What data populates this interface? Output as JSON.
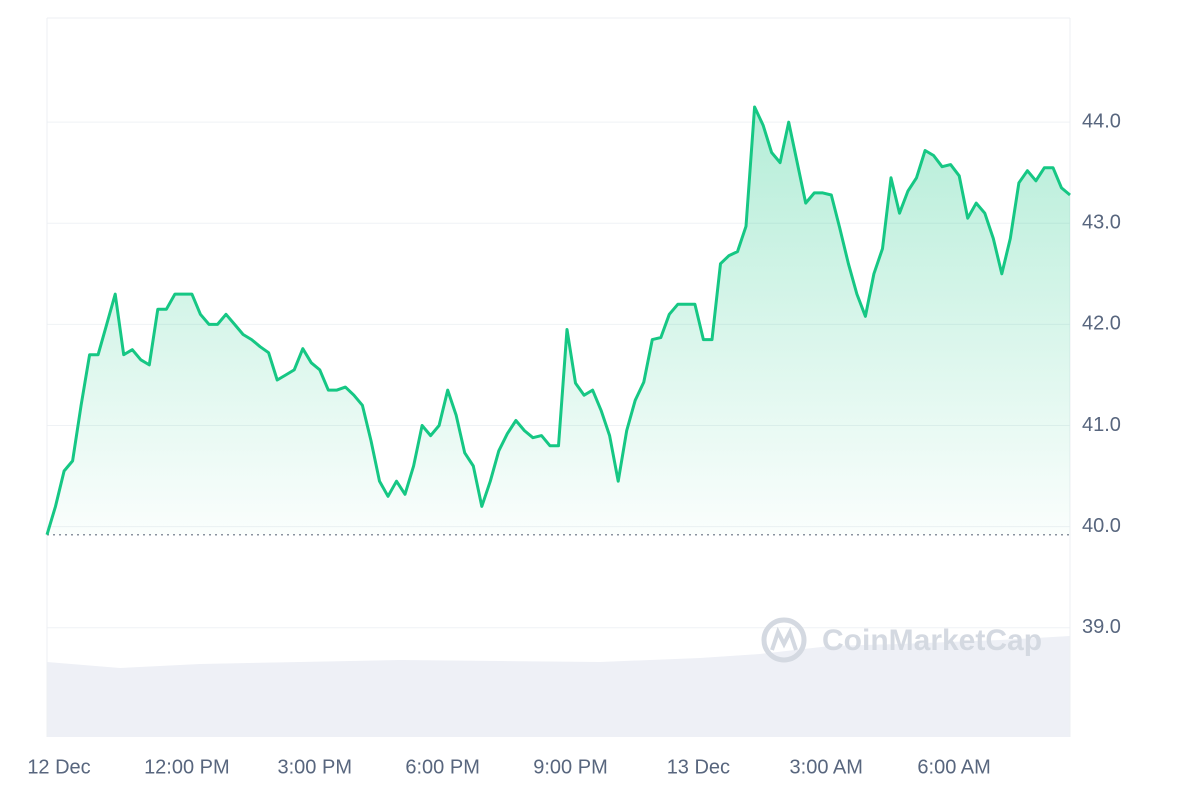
{
  "chart_data": {
    "type": "line",
    "watermark": "CoinMarketCap",
    "color": "#16c784",
    "grid": true,
    "reference_line": 39.92,
    "xlim": [
      9,
      33
    ],
    "ylim": [
      37.92,
      45.03
    ],
    "xticks": [
      {
        "value": 9,
        "label": "12 Dec"
      },
      {
        "value": 12,
        "label": "12:00 PM"
      },
      {
        "value": 15,
        "label": "3:00 PM"
      },
      {
        "value": 18,
        "label": "6:00 PM"
      },
      {
        "value": 21,
        "label": "9:00 PM"
      },
      {
        "value": 24,
        "label": "13 Dec"
      },
      {
        "value": 27,
        "label": "3:00 AM"
      },
      {
        "value": 30,
        "label": "6:00 AM"
      }
    ],
    "yticks": [
      {
        "value": 39,
        "label": "39.0"
      },
      {
        "value": 40,
        "label": "40.0"
      },
      {
        "value": 41,
        "label": "41.0"
      },
      {
        "value": 42,
        "label": "42.0"
      },
      {
        "value": 43,
        "label": "43.0"
      },
      {
        "value": 44,
        "label": "44.0"
      }
    ],
    "x": [
      9,
      9.2,
      9.4,
      9.6,
      9.8,
      10,
      10.2,
      10.4,
      10.6,
      10.8,
      11,
      11.2,
      11.4,
      11.6,
      11.8,
      12,
      12.2,
      12.4,
      12.6,
      12.8,
      13,
      13.2,
      13.4,
      13.6,
      13.8,
      14,
      14.2,
      14.4,
      14.6,
      14.8,
      15,
      15.2,
      15.4,
      15.6,
      15.8,
      16,
      16.2,
      16.4,
      16.6,
      16.8,
      17,
      17.2,
      17.4,
      17.6,
      17.8,
      18,
      18.2,
      18.4,
      18.6,
      18.8,
      19,
      19.2,
      19.4,
      19.6,
      19.8,
      20,
      20.2,
      20.4,
      20.6,
      20.8,
      21,
      21.2,
      21.4,
      21.6,
      21.8,
      22,
      22.2,
      22.4,
      22.6,
      22.8,
      23,
      23.2,
      23.4,
      23.6,
      23.8,
      24,
      24.2,
      24.4,
      24.6,
      24.8,
      25,
      25.2,
      25.4,
      25.6,
      25.8,
      26,
      26.2,
      26.4,
      26.6,
      26.8,
      27,
      27.2,
      27.4,
      27.6,
      27.8,
      28,
      28.2,
      28.4,
      28.6,
      28.8,
      29,
      29.2,
      29.4,
      29.6,
      29.8,
      30,
      30.2,
      30.4,
      30.6,
      30.8,
      31,
      31.2,
      31.4,
      31.6,
      31.8,
      32,
      32.2,
      32.4,
      32.6,
      32.8,
      33
    ],
    "values": [
      39.92,
      40.2,
      40.55,
      40.65,
      41.2,
      41.7,
      41.7,
      42.0,
      42.3,
      41.7,
      41.75,
      41.65,
      41.6,
      42.15,
      42.15,
      42.3,
      42.3,
      42.3,
      42.1,
      42.0,
      42.0,
      42.1,
      42.0,
      41.9,
      41.85,
      41.78,
      41.72,
      41.45,
      41.5,
      41.55,
      41.76,
      41.62,
      41.55,
      41.35,
      41.35,
      41.38,
      41.3,
      41.2,
      40.85,
      40.45,
      40.3,
      40.45,
      40.32,
      40.6,
      41.0,
      40.9,
      41.0,
      41.35,
      41.1,
      40.73,
      40.6,
      40.2,
      40.45,
      40.75,
      40.92,
      41.05,
      40.95,
      40.88,
      40.9,
      40.8,
      40.8,
      41.95,
      41.42,
      41.3,
      41.35,
      41.15,
      40.9,
      40.45,
      40.95,
      41.25,
      41.43,
      41.85,
      41.87,
      42.1,
      42.2,
      42.2,
      42.2,
      41.85,
      41.85,
      42.6,
      42.68,
      42.72,
      42.97,
      44.15,
      43.97,
      43.7,
      43.6,
      44.0,
      43.6,
      43.2,
      43.3,
      43.3,
      43.28,
      42.95,
      42.6,
      42.3,
      42.08,
      42.5,
      42.75,
      43.45,
      43.1,
      43.32,
      43.45,
      43.72,
      43.67,
      43.56,
      43.58,
      43.47,
      43.05,
      43.2,
      43.1,
      42.85,
      42.5,
      42.85,
      43.4,
      43.52,
      43.42,
      43.55,
      43.55,
      43.35,
      43.28
    ]
  }
}
